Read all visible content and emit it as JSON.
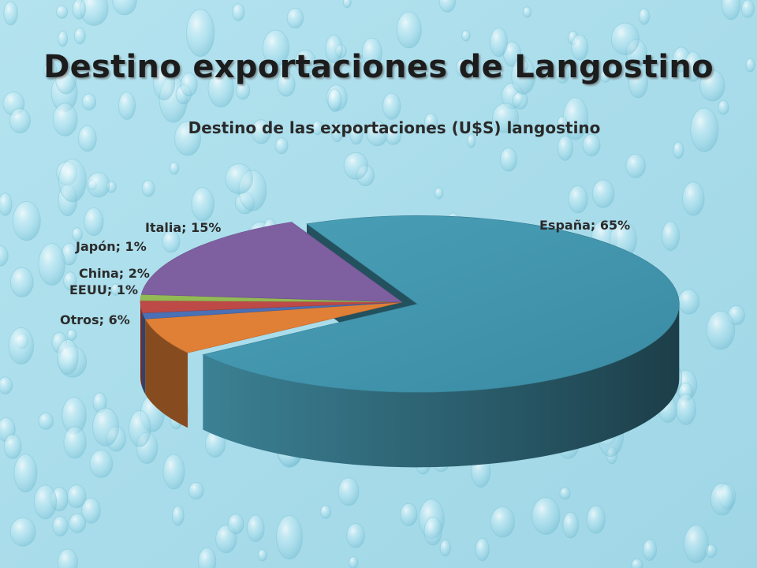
{
  "slide": {
    "title": "Destino exportaciones de Langostino"
  },
  "chart_data": {
    "type": "pie",
    "style": "3d-exploded",
    "title": "Destino de las exportaciones (U$S) langostino",
    "categories": [
      "España",
      "Otros",
      "EEUU",
      "China",
      "Japón",
      "Italia"
    ],
    "values": [
      65,
      6,
      1,
      2,
      1,
      15
    ],
    "data_labels": [
      "España; 65%",
      "Otros; 6%",
      "EEUU; 1%",
      "China; 2%",
      "Japón; 1%",
      "Italia; 15%"
    ],
    "colors": [
      "#3f93ab",
      "#e07f36",
      "#4a70b6",
      "#bd4a47",
      "#93ba54",
      "#7e5fa0"
    ],
    "legend": "none"
  }
}
